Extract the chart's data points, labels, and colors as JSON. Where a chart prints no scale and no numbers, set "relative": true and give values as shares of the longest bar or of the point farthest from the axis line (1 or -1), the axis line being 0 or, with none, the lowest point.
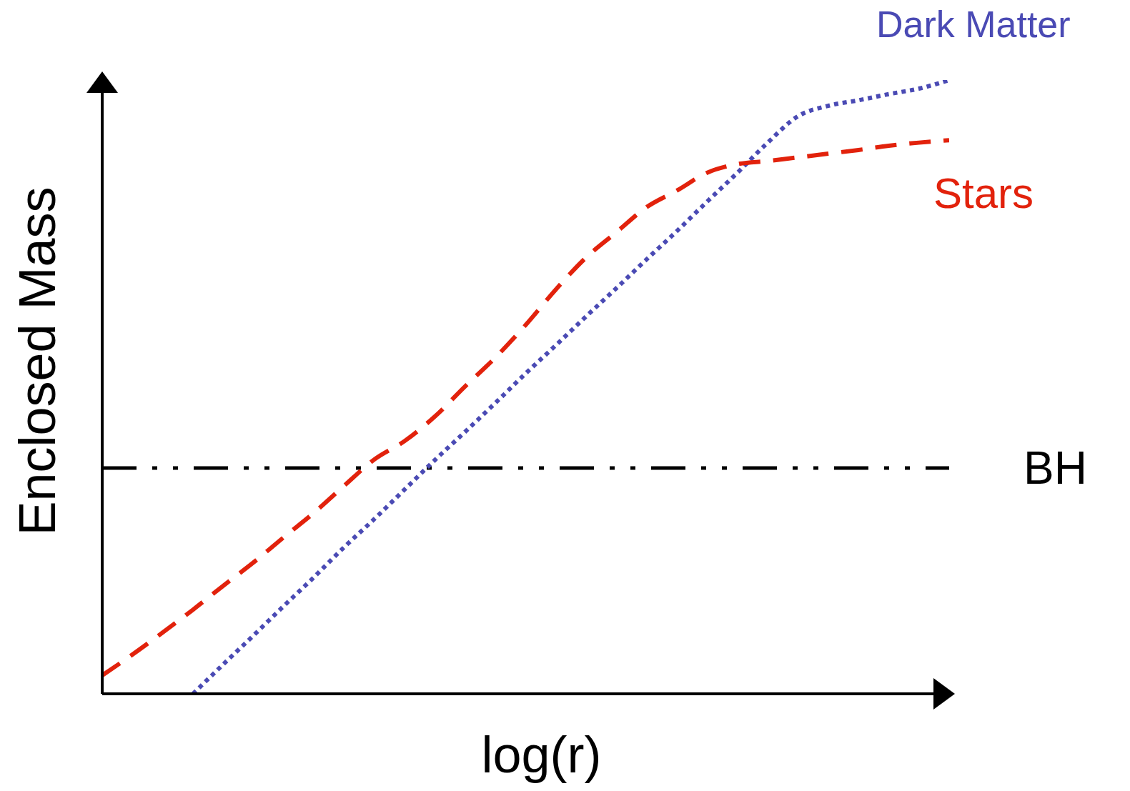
{
  "chart_data": {
    "type": "line",
    "relative": true,
    "xlabel": "log(r)",
    "ylabel": "Enclosed  Mass",
    "marker": "none",
    "categories": [
      null,
      null,
      null,
      null,
      null,
      null,
      null,
      null,
      null,
      null,
      null,
      null,
      null,
      null,
      null,
      null,
      null,
      null,
      null,
      null,
      null,
      null,
      null,
      null,
      null,
      null,
      null,
      null,
      null
    ],
    "series": [
      {
        "name": "Dark Matter",
        "color": "#4a4ab4",
        "line_style": "dotted",
        "values": [
          null,
          null,
          null,
          0,
          0.048,
          0.095,
          0.143,
          0.19,
          0.239,
          0.285,
          0.333,
          0.381,
          0.427,
          0.474,
          0.522,
          0.568,
          0.615,
          0.661,
          0.708,
          0.754,
          0.802,
          0.849,
          0.898,
          0.941,
          0.958,
          0.967,
          0.977,
          0.986,
          1
        ]
      },
      {
        "name": "Stars",
        "color": "#e2220c",
        "line_style": "dashed",
        "values": [
          0.03,
          0.064,
          0.1,
          0.137,
          0.176,
          0.214,
          0.255,
          0.295,
          0.339,
          0.382,
          0.412,
          0.452,
          0.501,
          0.548,
          0.601,
          0.659,
          0.711,
          0.752,
          0.793,
          0.82,
          0.849,
          0.863,
          0.868,
          0.874,
          0.88,
          0.886,
          0.893,
          0.898,
          0.902
        ]
      }
    ],
    "ref_lines": [
      {
        "axis": "y",
        "value": 0.368,
        "label": "BH",
        "color": "#000000",
        "line_style": "dashdot"
      }
    ]
  }
}
